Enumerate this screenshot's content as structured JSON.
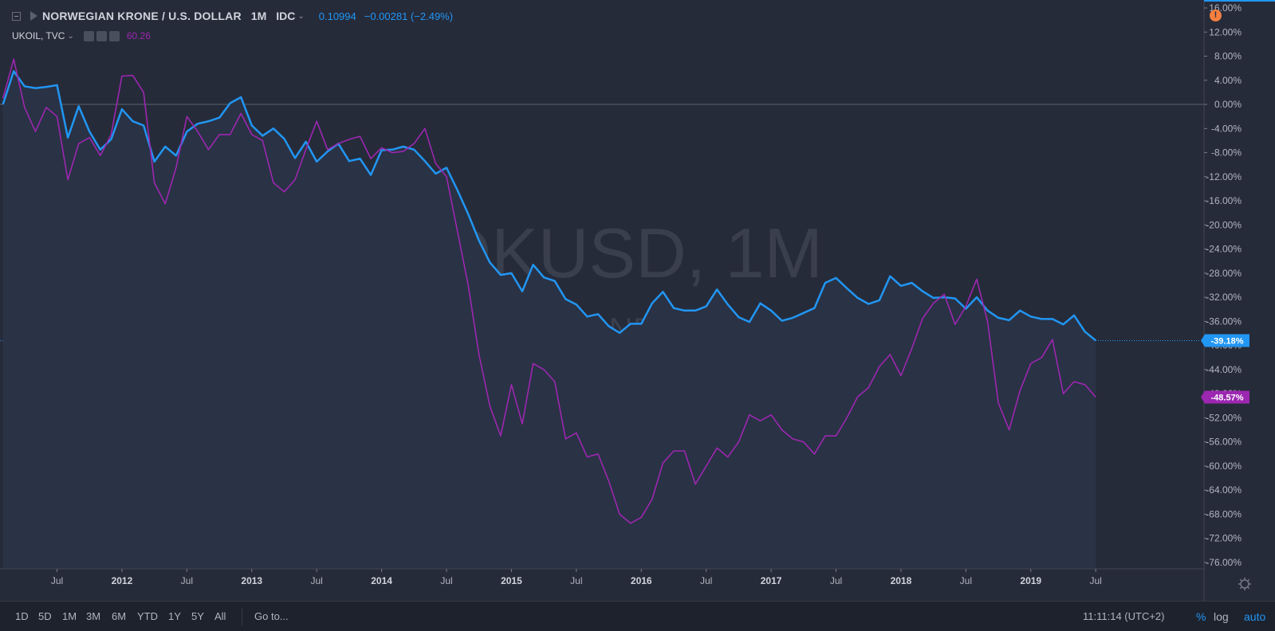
{
  "header": {
    "symbol_title": "NORWEGIAN KRONE / U.S. DOLLAR",
    "interval": "1M",
    "exchange": "IDC",
    "last_value": "0.10994",
    "change": "−0.00281 (−2.49%)",
    "compare_symbol": "UKOIL, TVC",
    "compare_value": "60.26",
    "warning_icon": "!"
  },
  "watermark": {
    "line1": "NOKUSD, 1M",
    "line2": "NORWEGIAN KRONE / U.S. DOLLAR"
  },
  "bottom_bar": {
    "timeframes": [
      "1D",
      "5D",
      "1M",
      "3M",
      "6M",
      "YTD",
      "1Y",
      "5Y",
      "All"
    ],
    "goto": "Go to...",
    "clock": "11:11:14 (UTC+2)",
    "pct": "%",
    "log": "log",
    "auto": "auto"
  },
  "colors": {
    "nok": "#2196f3",
    "ukoil": "#9c27b0",
    "background": "#262b3a"
  },
  "chart_data": {
    "type": "line",
    "y_unit": "%",
    "ylim": [
      -77,
      17
    ],
    "y_ticks": [
      "16.00%",
      "12.00%",
      "8.00%",
      "4.00%",
      "0.00%",
      "-4.00%",
      "-8.00%",
      "-12.00%",
      "-16.00%",
      "-20.00%",
      "-24.00%",
      "-28.00%",
      "-32.00%",
      "-36.00%",
      "-40.00%",
      "-44.00%",
      "-48.00%",
      "-52.00%",
      "-56.00%",
      "-60.00%",
      "-64.00%",
      "-68.00%",
      "-72.00%",
      "-76.00%"
    ],
    "x_range": [
      "2011-02",
      "2019-08"
    ],
    "x_ticks": [
      {
        "date": "2011-07",
        "label": "Jul",
        "bold": false
      },
      {
        "date": "2012-01",
        "label": "2012",
        "bold": true
      },
      {
        "date": "2012-07",
        "label": "Jul",
        "bold": false
      },
      {
        "date": "2013-01",
        "label": "2013",
        "bold": true
      },
      {
        "date": "2013-07",
        "label": "Jul",
        "bold": false
      },
      {
        "date": "2014-01",
        "label": "2014",
        "bold": true
      },
      {
        "date": "2014-07",
        "label": "Jul",
        "bold": false
      },
      {
        "date": "2015-01",
        "label": "2015",
        "bold": true
      },
      {
        "date": "2015-07",
        "label": "Jul",
        "bold": false
      },
      {
        "date": "2016-01",
        "label": "2016",
        "bold": true
      },
      {
        "date": "2016-07",
        "label": "Jul",
        "bold": false
      },
      {
        "date": "2017-01",
        "label": "2017",
        "bold": true
      },
      {
        "date": "2017-07",
        "label": "Jul",
        "bold": false
      },
      {
        "date": "2018-01",
        "label": "2018",
        "bold": true
      },
      {
        "date": "2018-07",
        "label": "Jul",
        "bold": false
      },
      {
        "date": "2019-01",
        "label": "2019",
        "bold": true
      },
      {
        "date": "2019-07",
        "label": "Jul",
        "bold": false
      }
    ],
    "series": [
      {
        "name": "NORWEGIAN KRONE / U.S. DOLLAR",
        "color": "#2196f3",
        "start": "2011-02",
        "values": [
          0.0,
          5.5,
          3.0,
          2.7,
          2.9,
          3.2,
          -5.5,
          -0.3,
          -4.5,
          -7.5,
          -5.8,
          -0.8,
          -2.8,
          -3.5,
          -9.5,
          -7.0,
          -8.5,
          -4.5,
          -3.2,
          -2.8,
          -2.2,
          0.2,
          1.2,
          -3.5,
          -5.2,
          -4.0,
          -5.7,
          -8.9,
          -6.2,
          -9.5,
          -7.8,
          -6.5,
          -9.4,
          -9.0,
          -11.7,
          -7.6,
          -7.5,
          -7.0,
          -7.5,
          -9.4,
          -11.5,
          -10.5,
          -14.2,
          -18.2,
          -22.6,
          -26.2,
          -28.3,
          -28.0,
          -31.0,
          -26.6,
          -28.7,
          -29.3,
          -32.3,
          -33.2,
          -35.2,
          -34.8,
          -36.8,
          -37.9,
          -36.4,
          -36.4,
          -33.0,
          -31.1,
          -33.8,
          -34.2,
          -34.2,
          -33.5,
          -30.7,
          -33.2,
          -35.3,
          -36.1,
          -33.0,
          -34.2,
          -35.9,
          -35.4,
          -34.6,
          -33.8,
          -29.6,
          -28.8,
          -30.5,
          -32.1,
          -33.1,
          -32.5,
          -28.5,
          -30.1,
          -29.6,
          -31.0,
          -32.1,
          -32.0,
          -32.2,
          -33.9,
          -32.0,
          -34.2,
          -35.4,
          -35.8,
          -34.2,
          -35.2,
          -35.6,
          -35.6,
          -36.5,
          -35.0,
          -37.7,
          -39.18
        ]
      },
      {
        "name": "UKOIL, TVC",
        "color": "#9c27b0",
        "start": "2011-02",
        "values": [
          1.0,
          7.5,
          -0.5,
          -4.5,
          -0.5,
          -2.0,
          -12.5,
          -6.5,
          -5.5,
          -8.5,
          -5.0,
          4.7,
          4.8,
          2.0,
          -13.0,
          -16.5,
          -10.5,
          -2.0,
          -4.5,
          -7.5,
          -5.0,
          -5.0,
          -1.5,
          -5.0,
          -6.0,
          -13.0,
          -14.5,
          -12.5,
          -7.5,
          -2.8,
          -7.5,
          -6.5,
          -5.8,
          -5.3,
          -9.0,
          -7.2,
          -8.0,
          -7.8,
          -6.5,
          -4.0,
          -9.8,
          -12.0,
          -21.0,
          -30.0,
          -41.5,
          -50.0,
          -55.0,
          -46.5,
          -53.0,
          -43.0,
          -44.0,
          -46.0,
          -55.5,
          -54.5,
          -58.5,
          -58.0,
          -62.5,
          -68.0,
          -69.5,
          -68.5,
          -65.5,
          -59.5,
          -57.5,
          -57.5,
          -63.0,
          -60.0,
          -57.0,
          -58.5,
          -56.0,
          -51.5,
          -52.5,
          -51.5,
          -54.0,
          -55.5,
          -56.0,
          -58.0,
          -55.0,
          -55.0,
          -52.0,
          -48.5,
          -47.0,
          -43.5,
          -41.5,
          -45.0,
          -40.5,
          -35.5,
          -33.0,
          -31.5,
          -36.5,
          -33.5,
          -29.0,
          -36.0,
          -49.5,
          -54.0,
          -47.5,
          -43.0,
          -42.0,
          -39.0,
          -48.0,
          -46.0,
          -46.5,
          -48.57
        ]
      }
    ],
    "last_labels": [
      "-39.18%",
      "-48.57%"
    ],
    "zero_line": 0
  }
}
